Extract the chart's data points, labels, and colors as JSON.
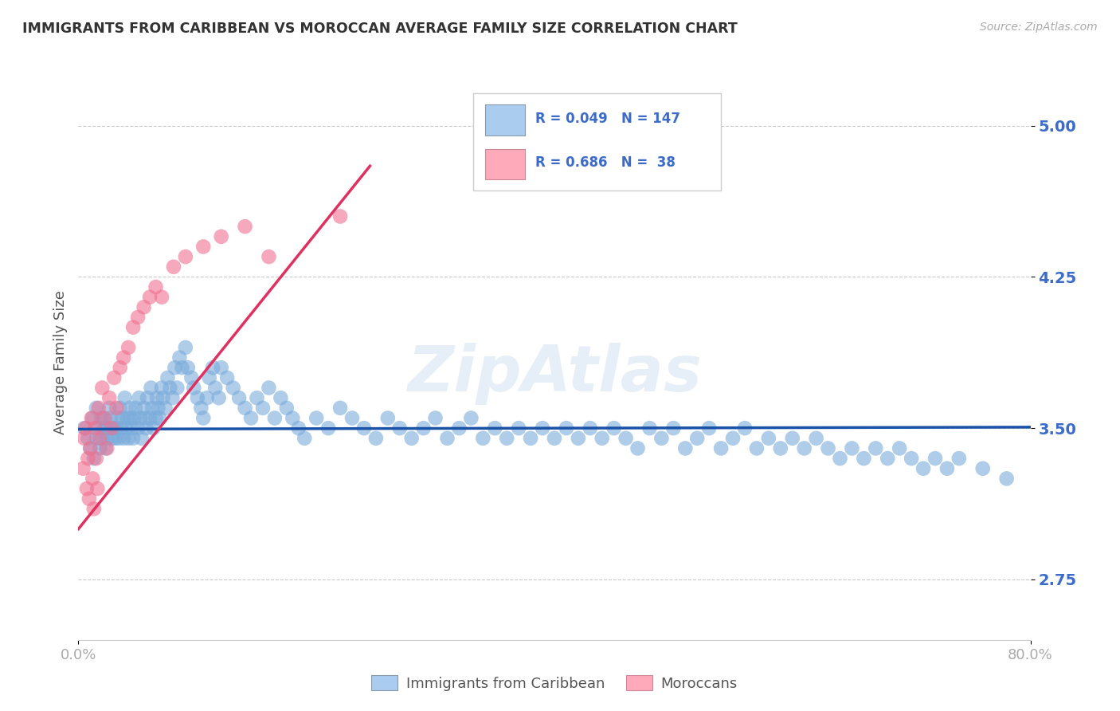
{
  "title": "IMMIGRANTS FROM CARIBBEAN VS MOROCCAN AVERAGE FAMILY SIZE CORRELATION CHART",
  "source": "Source: ZipAtlas.com",
  "ylabel": "Average Family Size",
  "xlim": [
    0.0,
    0.8
  ],
  "ylim": [
    2.45,
    5.2
  ],
  "yticks": [
    2.75,
    3.5,
    4.25,
    5.0
  ],
  "ytick_labels": [
    "2.75",
    "3.50",
    "4.25",
    "5.00"
  ],
  "ytick_color": "#3b6cc9",
  "watermark": "ZipAtlas",
  "legend_R1": "R = 0.049",
  "legend_N1": "N = 147",
  "legend_R2": "R = 0.686",
  "legend_N2": "N =  38",
  "legend_label1": "Immigrants from Caribbean",
  "legend_label2": "Moroccans",
  "blue_color": "#7aabdb",
  "pink_color": "#f07090",
  "line_blue": "#1a52a8",
  "line_pink": "#e03060",
  "grid_color": "#bbbbbb",
  "background_color": "#ffffff",
  "blue_scatter_x": [
    0.005,
    0.008,
    0.01,
    0.012,
    0.013,
    0.015,
    0.015,
    0.017,
    0.018,
    0.019,
    0.02,
    0.021,
    0.022,
    0.023,
    0.024,
    0.025,
    0.026,
    0.027,
    0.028,
    0.03,
    0.031,
    0.032,
    0.033,
    0.034,
    0.035,
    0.036,
    0.037,
    0.038,
    0.039,
    0.04,
    0.041,
    0.042,
    0.043,
    0.044,
    0.045,
    0.046,
    0.047,
    0.048,
    0.05,
    0.051,
    0.052,
    0.053,
    0.055,
    0.056,
    0.057,
    0.058,
    0.06,
    0.061,
    0.062,
    0.063,
    0.065,
    0.066,
    0.067,
    0.068,
    0.07,
    0.071,
    0.073,
    0.075,
    0.077,
    0.079,
    0.081,
    0.083,
    0.085,
    0.087,
    0.09,
    0.092,
    0.095,
    0.097,
    0.1,
    0.103,
    0.105,
    0.108,
    0.11,
    0.113,
    0.115,
    0.118,
    0.12,
    0.125,
    0.13,
    0.135,
    0.14,
    0.145,
    0.15,
    0.155,
    0.16,
    0.165,
    0.17,
    0.175,
    0.18,
    0.185,
    0.19,
    0.2,
    0.21,
    0.22,
    0.23,
    0.24,
    0.25,
    0.26,
    0.27,
    0.28,
    0.29,
    0.3,
    0.31,
    0.32,
    0.33,
    0.34,
    0.35,
    0.36,
    0.37,
    0.38,
    0.39,
    0.4,
    0.41,
    0.42,
    0.43,
    0.44,
    0.45,
    0.46,
    0.47,
    0.48,
    0.49,
    0.5,
    0.51,
    0.52,
    0.53,
    0.54,
    0.55,
    0.56,
    0.57,
    0.58,
    0.59,
    0.6,
    0.61,
    0.62,
    0.63,
    0.64,
    0.65,
    0.66,
    0.67,
    0.68,
    0.69,
    0.7,
    0.71,
    0.72,
    0.73,
    0.74,
    0.76,
    0.78
  ],
  "blue_scatter_y": [
    3.5,
    3.45,
    3.4,
    3.55,
    3.35,
    3.45,
    3.6,
    3.5,
    3.4,
    3.55,
    3.45,
    3.55,
    3.5,
    3.4,
    3.45,
    3.5,
    3.6,
    3.55,
    3.45,
    3.5,
    3.45,
    3.5,
    3.55,
    3.45,
    3.6,
    3.5,
    3.55,
    3.45,
    3.65,
    3.5,
    3.55,
    3.45,
    3.6,
    3.55,
    3.5,
    3.45,
    3.55,
    3.6,
    3.5,
    3.65,
    3.55,
    3.45,
    3.6,
    3.55,
    3.5,
    3.65,
    3.55,
    3.7,
    3.6,
    3.5,
    3.55,
    3.65,
    3.6,
    3.55,
    3.7,
    3.65,
    3.6,
    3.75,
    3.7,
    3.65,
    3.8,
    3.7,
    3.85,
    3.8,
    3.9,
    3.8,
    3.75,
    3.7,
    3.65,
    3.6,
    3.55,
    3.65,
    3.75,
    3.8,
    3.7,
    3.65,
    3.8,
    3.75,
    3.7,
    3.65,
    3.6,
    3.55,
    3.65,
    3.6,
    3.7,
    3.55,
    3.65,
    3.6,
    3.55,
    3.5,
    3.45,
    3.55,
    3.5,
    3.6,
    3.55,
    3.5,
    3.45,
    3.55,
    3.5,
    3.45,
    3.5,
    3.55,
    3.45,
    3.5,
    3.55,
    3.45,
    3.5,
    3.45,
    3.5,
    3.45,
    3.5,
    3.45,
    3.5,
    3.45,
    3.5,
    3.45,
    3.5,
    3.45,
    3.4,
    3.5,
    3.45,
    3.5,
    3.4,
    3.45,
    3.5,
    3.4,
    3.45,
    3.5,
    3.4,
    3.45,
    3.4,
    3.45,
    3.4,
    3.45,
    3.4,
    3.35,
    3.4,
    3.35,
    3.4,
    3.35,
    3.4,
    3.35,
    3.3,
    3.35,
    3.3,
    3.35,
    3.3,
    3.25
  ],
  "pink_scatter_x": [
    0.004,
    0.005,
    0.006,
    0.007,
    0.008,
    0.009,
    0.01,
    0.011,
    0.012,
    0.013,
    0.014,
    0.015,
    0.016,
    0.017,
    0.018,
    0.02,
    0.022,
    0.024,
    0.026,
    0.028,
    0.03,
    0.032,
    0.035,
    0.038,
    0.042,
    0.046,
    0.05,
    0.055,
    0.06,
    0.065,
    0.07,
    0.08,
    0.09,
    0.105,
    0.12,
    0.14,
    0.16,
    0.22
  ],
  "pink_scatter_y": [
    3.3,
    3.45,
    3.5,
    3.2,
    3.35,
    3.15,
    3.4,
    3.55,
    3.25,
    3.1,
    3.5,
    3.35,
    3.2,
    3.6,
    3.45,
    3.7,
    3.55,
    3.4,
    3.65,
    3.5,
    3.75,
    3.6,
    3.8,
    3.85,
    3.9,
    4.0,
    4.05,
    4.1,
    4.15,
    4.2,
    4.15,
    4.3,
    4.35,
    4.4,
    4.45,
    4.5,
    4.35,
    4.55
  ],
  "blue_line_x": [
    0.0,
    0.8
  ],
  "blue_line_y": [
    3.495,
    3.505
  ],
  "pink_line_x": [
    0.0,
    0.245
  ],
  "pink_line_y": [
    3.0,
    4.8
  ],
  "xtick_positions": [
    0.0,
    0.8
  ],
  "xtick_labels": [
    "0.0%",
    "80.0%"
  ]
}
